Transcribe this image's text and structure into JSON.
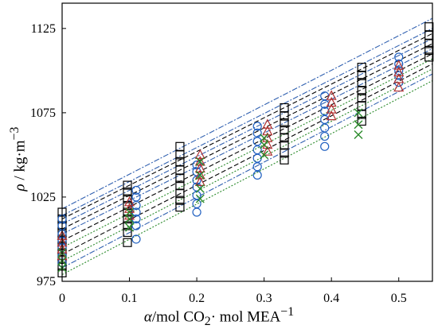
{
  "chart_data": {
    "type": "scatter",
    "xlabel_symbol": "α",
    "xlabel_rest": "/mol CO",
    "xlabel_sub": "2",
    "xlabel_rest2": "· mol MEA",
    "xlabel_sup": "−1",
    "ylabel_symbol": "ρ",
    "ylabel_rest": " / kg·m",
    "ylabel_sup": "−3",
    "xlim": [
      0,
      0.55
    ],
    "ylim": [
      975,
      1140
    ],
    "x_ticks": [
      {
        "value": 0,
        "label": "0"
      },
      {
        "value": 0.1,
        "label": "0.1"
      },
      {
        "value": 0.2,
        "label": "0.2"
      },
      {
        "value": 0.3,
        "label": "0.3"
      },
      {
        "value": 0.4,
        "label": "0.4"
      },
      {
        "value": 0.5,
        "label": "0.5"
      }
    ],
    "y_ticks": [
      {
        "value": 975,
        "label": "975"
      },
      {
        "value": 1025,
        "label": "1025"
      },
      {
        "value": 1075,
        "label": "1075"
      },
      {
        "value": 1125,
        "label": "1125"
      }
    ],
    "grid": false,
    "legend": "none",
    "series": [
      {
        "marker": "square",
        "color": "#000000",
        "points": [
          [
            0,
            1016
          ],
          [
            0,
            1012
          ],
          [
            0,
            1008
          ],
          [
            0,
            1004
          ],
          [
            0,
            1000
          ],
          [
            0,
            996
          ],
          [
            0,
            992
          ],
          [
            0,
            988
          ],
          [
            0,
            984
          ],
          [
            0,
            980
          ],
          [
            0.097,
            1032
          ],
          [
            0.097,
            1028
          ],
          [
            0.097,
            1024
          ],
          [
            0.097,
            1020
          ],
          [
            0.097,
            1016
          ],
          [
            0.097,
            1012
          ],
          [
            0.097,
            1008
          ],
          [
            0.097,
            1004
          ],
          [
            0.097,
            998
          ],
          [
            0.175,
            1055
          ],
          [
            0.175,
            1050
          ],
          [
            0.175,
            1046
          ],
          [
            0.175,
            1041
          ],
          [
            0.175,
            1036
          ],
          [
            0.175,
            1032
          ],
          [
            0.175,
            1027
          ],
          [
            0.175,
            1023
          ],
          [
            0.175,
            1019
          ],
          [
            0.33,
            1078
          ],
          [
            0.33,
            1073
          ],
          [
            0.33,
            1069
          ],
          [
            0.33,
            1065
          ],
          [
            0.33,
            1060
          ],
          [
            0.33,
            1056
          ],
          [
            0.33,
            1051
          ],
          [
            0.33,
            1047
          ],
          [
            0.445,
            1102
          ],
          [
            0.445,
            1097
          ],
          [
            0.445,
            1093
          ],
          [
            0.445,
            1088
          ],
          [
            0.445,
            1084
          ],
          [
            0.445,
            1079
          ],
          [
            0.445,
            1074
          ],
          [
            0.445,
            1070
          ],
          [
            0.545,
            1126
          ],
          [
            0.545,
            1121
          ],
          [
            0.545,
            1116
          ],
          [
            0.545,
            1112
          ],
          [
            0.545,
            1108
          ]
        ]
      },
      {
        "marker": "circle",
        "color": "#2060c0",
        "points": [
          [
            0,
            1012
          ],
          [
            0,
            1008
          ],
          [
            0,
            1003
          ],
          [
            0,
            999
          ],
          [
            0,
            995
          ],
          [
            0,
            990
          ],
          [
            0,
            986
          ],
          [
            0.11,
            1029
          ],
          [
            0.11,
            1025
          ],
          [
            0.11,
            1020
          ],
          [
            0.11,
            1016
          ],
          [
            0.11,
            1012
          ],
          [
            0.11,
            1008
          ],
          [
            0.11,
            1000
          ],
          [
            0.2,
            1044
          ],
          [
            0.2,
            1040
          ],
          [
            0.2,
            1035
          ],
          [
            0.2,
            1031
          ],
          [
            0.2,
            1026
          ],
          [
            0.2,
            1021
          ],
          [
            0.2,
            1016
          ],
          [
            0.29,
            1067
          ],
          [
            0.29,
            1063
          ],
          [
            0.29,
            1058
          ],
          [
            0.29,
            1053
          ],
          [
            0.29,
            1048
          ],
          [
            0.29,
            1043
          ],
          [
            0.29,
            1038
          ],
          [
            0.39,
            1085
          ],
          [
            0.39,
            1080
          ],
          [
            0.39,
            1076
          ],
          [
            0.39,
            1071
          ],
          [
            0.39,
            1066
          ],
          [
            0.39,
            1061
          ],
          [
            0.39,
            1055
          ],
          [
            0.5,
            1108
          ],
          [
            0.5,
            1104
          ],
          [
            0.5,
            1100
          ],
          [
            0.5,
            1097
          ],
          [
            0.5,
            1093
          ]
        ]
      },
      {
        "marker": "triangle",
        "color": "#b03030",
        "points": [
          [
            0,
            1002
          ],
          [
            0,
            998
          ],
          [
            0,
            994
          ],
          [
            0,
            990
          ],
          [
            0.1,
            1022
          ],
          [
            0.1,
            1018
          ],
          [
            0.1,
            1014
          ],
          [
            0.205,
            1050
          ],
          [
            0.205,
            1046
          ],
          [
            0.205,
            1042
          ],
          [
            0.205,
            1038
          ],
          [
            0.205,
            1034
          ],
          [
            0.305,
            1068
          ],
          [
            0.305,
            1064
          ],
          [
            0.305,
            1060
          ],
          [
            0.305,
            1056
          ],
          [
            0.305,
            1052
          ],
          [
            0.4,
            1085
          ],
          [
            0.4,
            1081
          ],
          [
            0.4,
            1077
          ],
          [
            0.4,
            1073
          ],
          [
            0.5,
            1103
          ],
          [
            0.5,
            1099
          ],
          [
            0.5,
            1095
          ],
          [
            0.5,
            1090
          ]
        ]
      },
      {
        "marker": "cross",
        "color": "#2a8a2a",
        "points": [
          [
            0,
            992
          ],
          [
            0,
            987
          ],
          [
            0,
            983
          ],
          [
            0.1,
            1016
          ],
          [
            0.1,
            1012
          ],
          [
            0.1,
            1007
          ],
          [
            0.205,
            1046
          ],
          [
            0.205,
            1038
          ],
          [
            0.205,
            1030
          ],
          [
            0.205,
            1024
          ],
          [
            0.3,
            1060
          ],
          [
            0.3,
            1056
          ],
          [
            0.3,
            1050
          ],
          [
            0.44,
            1075
          ],
          [
            0.44,
            1068
          ],
          [
            0.44,
            1062
          ]
        ]
      }
    ],
    "fit_lines": [
      {
        "color": "#3060b0",
        "dash": "7,2,2,2",
        "y0": 1018,
        "y1": 1131
      },
      {
        "color": "#3060b0",
        "dash": "7,2,2,2",
        "y0": 1014,
        "y1": 1125
      },
      {
        "color": "#000000",
        "dash": "6,3",
        "y0": 1012,
        "y1": 1122
      },
      {
        "color": "#3060b0",
        "dash": "7,2,2,2",
        "y0": 1009,
        "y1": 1119
      },
      {
        "color": "#000000",
        "dash": "6,3",
        "y0": 1006,
        "y1": 1116
      },
      {
        "color": "#3060b0",
        "dash": "7,2,2,2",
        "y0": 1003,
        "y1": 1113
      },
      {
        "color": "#000000",
        "dash": "6,3",
        "y0": 999,
        "y1": 1110
      },
      {
        "color": "#2a8a2a",
        "dash": "2,2",
        "y0": 995,
        "y1": 1107
      },
      {
        "color": "#000000",
        "dash": "6,3",
        "y0": 991,
        "y1": 1104
      },
      {
        "color": "#2a8a2a",
        "dash": "2,2",
        "y0": 987,
        "y1": 1101
      },
      {
        "color": "#3060b0",
        "dash": "7,2,2,2",
        "y0": 983,
        "y1": 1098
      },
      {
        "color": "#2a8a2a",
        "dash": "2,2",
        "y0": 979,
        "y1": 1094
      }
    ]
  }
}
